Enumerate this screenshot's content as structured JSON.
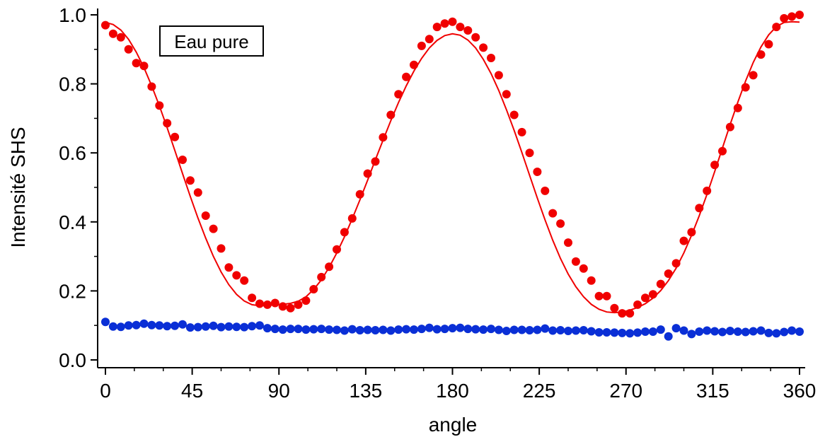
{
  "chart_data": {
    "type": "scatter",
    "title": "",
    "xlabel": "angle",
    "ylabel": "Intensité SHS",
    "xlim": [
      0,
      360
    ],
    "ylim": [
      0,
      1
    ],
    "x_ticks": [
      0,
      45,
      90,
      135,
      180,
      225,
      270,
      315,
      360
    ],
    "y_ticks": [
      "0.0",
      "0.2",
      "0.4",
      "0.6",
      "0.8",
      "1.0"
    ],
    "annotation": "Eau pure",
    "grid": false,
    "colors": {
      "red": "#f00000",
      "blue": "#0a2fd6",
      "axis": "#000000"
    },
    "series": [
      {
        "kind": "points",
        "color": "#f00000",
        "x": [
          0,
          4,
          8,
          12,
          16,
          20,
          24,
          28,
          32,
          36,
          40,
          44,
          48,
          52,
          56,
          60,
          64,
          68,
          72,
          76,
          80,
          84,
          88,
          92,
          96,
          100,
          104,
          108,
          112,
          116,
          120,
          124,
          128,
          132,
          136,
          140,
          144,
          148,
          152,
          156,
          160,
          164,
          168,
          172,
          176,
          180,
          184,
          188,
          192,
          196,
          200,
          204,
          208,
          212,
          216,
          220,
          224,
          228,
          232,
          236,
          240,
          244,
          248,
          252,
          256,
          260,
          264,
          268,
          272,
          276,
          280,
          284,
          288,
          292,
          296,
          300,
          304,
          308,
          312,
          316,
          320,
          324,
          328,
          332,
          336,
          340,
          344,
          348,
          352,
          356,
          360
        ],
        "y": [
          0.97,
          0.945,
          0.935,
          0.9,
          0.86,
          0.852,
          0.792,
          0.737,
          0.686,
          0.646,
          0.58,
          0.52,
          0.485,
          0.418,
          0.38,
          0.323,
          0.268,
          0.245,
          0.23,
          0.18,
          0.163,
          0.16,
          0.165,
          0.155,
          0.15,
          0.16,
          0.172,
          0.205,
          0.24,
          0.27,
          0.32,
          0.37,
          0.41,
          0.48,
          0.54,
          0.575,
          0.645,
          0.71,
          0.77,
          0.82,
          0.855,
          0.91,
          0.93,
          0.965,
          0.975,
          0.98,
          0.965,
          0.955,
          0.935,
          0.905,
          0.875,
          0.825,
          0.77,
          0.71,
          0.66,
          0.6,
          0.545,
          0.49,
          0.425,
          0.395,
          0.34,
          0.285,
          0.265,
          0.23,
          0.185,
          0.185,
          0.15,
          0.135,
          0.135,
          0.16,
          0.18,
          0.19,
          0.22,
          0.25,
          0.28,
          0.345,
          0.37,
          0.44,
          0.49,
          0.565,
          0.605,
          0.675,
          0.73,
          0.79,
          0.825,
          0.885,
          0.915,
          0.965,
          0.99,
          0.995,
          1.0
        ]
      },
      {
        "kind": "line",
        "color": "#f00000",
        "x": [
          0,
          4,
          8,
          12,
          16,
          20,
          24,
          28,
          32,
          36,
          40,
          44,
          48,
          52,
          56,
          60,
          64,
          68,
          72,
          76,
          80,
          84,
          88,
          92,
          96,
          100,
          104,
          108,
          112,
          116,
          120,
          124,
          128,
          132,
          136,
          140,
          144,
          148,
          152,
          156,
          160,
          164,
          168,
          172,
          176,
          180,
          184,
          188,
          192,
          196,
          200,
          204,
          208,
          212,
          216,
          220,
          224,
          228,
          232,
          236,
          240,
          244,
          248,
          252,
          256,
          260,
          264,
          268,
          272,
          276,
          280,
          284,
          288,
          292,
          296,
          300,
          304,
          308,
          312,
          316,
          320,
          324,
          328,
          332,
          336,
          340,
          344,
          348,
          352,
          356,
          360
        ],
        "y": [
          0.978,
          0.972,
          0.956,
          0.929,
          0.892,
          0.847,
          0.794,
          0.736,
          0.673,
          0.607,
          0.54,
          0.474,
          0.411,
          0.353,
          0.3,
          0.255,
          0.218,
          0.19,
          0.171,
          0.16,
          0.157,
          0.158,
          0.16,
          0.161,
          0.164,
          0.17,
          0.183,
          0.204,
          0.232,
          0.268,
          0.31,
          0.357,
          0.409,
          0.464,
          0.521,
          0.58,
          0.637,
          0.693,
          0.746,
          0.794,
          0.837,
          0.874,
          0.904,
          0.926,
          0.94,
          0.945,
          0.941,
          0.927,
          0.904,
          0.871,
          0.83,
          0.781,
          0.725,
          0.665,
          0.601,
          0.535,
          0.469,
          0.406,
          0.347,
          0.294,
          0.249,
          0.212,
          0.183,
          0.161,
          0.147,
          0.139,
          0.137,
          0.139,
          0.144,
          0.152,
          0.163,
          0.179,
          0.201,
          0.23,
          0.266,
          0.31,
          0.361,
          0.418,
          0.48,
          0.546,
          0.614,
          0.682,
          0.747,
          0.808,
          0.862,
          0.907,
          0.942,
          0.966,
          0.978,
          0.98,
          0.979
        ]
      },
      {
        "kind": "points",
        "color": "#0a2fd6",
        "x": [
          0,
          4,
          8,
          12,
          16,
          20,
          24,
          28,
          32,
          36,
          40,
          44,
          48,
          52,
          56,
          60,
          64,
          68,
          72,
          76,
          80,
          84,
          88,
          92,
          96,
          100,
          104,
          108,
          112,
          116,
          120,
          124,
          128,
          132,
          136,
          140,
          144,
          148,
          152,
          156,
          160,
          164,
          168,
          172,
          176,
          180,
          184,
          188,
          192,
          196,
          200,
          204,
          208,
          212,
          216,
          220,
          224,
          228,
          232,
          236,
          240,
          244,
          248,
          252,
          256,
          260,
          264,
          268,
          272,
          276,
          280,
          284,
          288,
          292,
          296,
          300,
          304,
          308,
          312,
          316,
          320,
          324,
          328,
          332,
          336,
          340,
          344,
          348,
          352,
          356,
          360
        ],
        "y": [
          0.11,
          0.097,
          0.096,
          0.1,
          0.101,
          0.105,
          0.101,
          0.1,
          0.098,
          0.099,
          0.103,
          0.094,
          0.095,
          0.097,
          0.099,
          0.095,
          0.097,
          0.096,
          0.095,
          0.098,
          0.1,
          0.092,
          0.09,
          0.088,
          0.09,
          0.09,
          0.088,
          0.089,
          0.09,
          0.088,
          0.087,
          0.085,
          0.089,
          0.086,
          0.087,
          0.086,
          0.087,
          0.085,
          0.088,
          0.089,
          0.088,
          0.09,
          0.093,
          0.089,
          0.09,
          0.092,
          0.093,
          0.09,
          0.089,
          0.088,
          0.09,
          0.087,
          0.084,
          0.087,
          0.087,
          0.086,
          0.087,
          0.091,
          0.085,
          0.086,
          0.084,
          0.085,
          0.086,
          0.083,
          0.08,
          0.08,
          0.079,
          0.078,
          0.077,
          0.079,
          0.082,
          0.082,
          0.088,
          0.068,
          0.092,
          0.085,
          0.075,
          0.082,
          0.085,
          0.083,
          0.081,
          0.084,
          0.082,
          0.081,
          0.083,
          0.085,
          0.078,
          0.077,
          0.081,
          0.085,
          0.082
        ]
      }
    ]
  }
}
